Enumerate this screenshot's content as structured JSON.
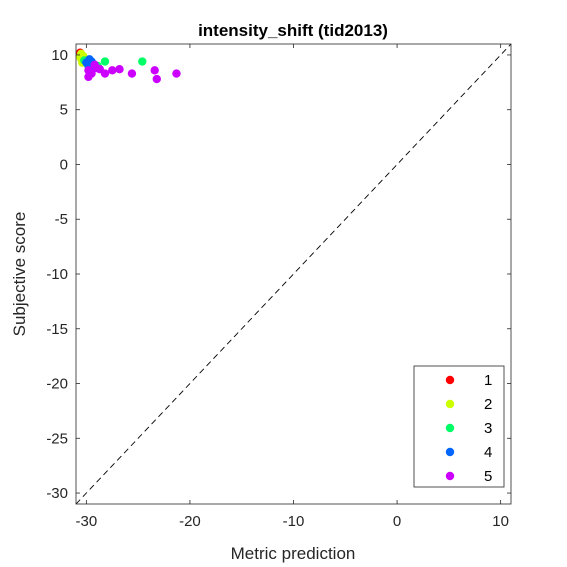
{
  "chart_data": {
    "type": "scatter",
    "title": "intensity_shift (tid2013)",
    "xlabel": "Metric prediction",
    "ylabel": "Subjective score",
    "xlim": [
      -31,
      11
    ],
    "ylim": [
      -31,
      11
    ],
    "xticks": [
      -30,
      -20,
      -10,
      0,
      10
    ],
    "yticks": [
      10,
      5,
      0,
      -5,
      -10,
      -15,
      -20,
      -25,
      -30
    ],
    "grid": false,
    "reference_line": "y = x (dashed)",
    "legend_position": "bottom-right",
    "series": [
      {
        "name": "1",
        "color": "#ff0000",
        "points": [
          [
            -30.6,
            10.2
          ],
          [
            -30.5,
            10.0
          ],
          [
            -30.4,
            9.9
          ],
          [
            -30.5,
            9.7
          ],
          [
            -30.3,
            9.6
          ]
        ]
      },
      {
        "name": "2",
        "color": "#ccff00",
        "points": [
          [
            -30.5,
            10.1
          ],
          [
            -30.3,
            9.9
          ],
          [
            -30.6,
            9.8
          ],
          [
            -30.2,
            9.5
          ],
          [
            -30.4,
            9.3
          ]
        ]
      },
      {
        "name": "3",
        "color": "#00ff66",
        "points": [
          [
            -30.2,
            9.5
          ],
          [
            -29.8,
            9.4
          ],
          [
            -29.5,
            9.2
          ],
          [
            -28.9,
            9.0
          ],
          [
            -28.2,
            9.4
          ],
          [
            -24.6,
            9.4
          ]
        ]
      },
      {
        "name": "4",
        "color": "#0066ff",
        "points": [
          [
            -30.0,
            9.3
          ],
          [
            -29.7,
            9.6
          ],
          [
            -29.5,
            9.4
          ],
          [
            -29.2,
            9.1
          ],
          [
            -29.6,
            8.9
          ],
          [
            -29.8,
            9.0
          ]
        ]
      },
      {
        "name": "5",
        "color": "#cc00ff",
        "points": [
          [
            -29.8,
            8.6
          ],
          [
            -29.5,
            8.3
          ],
          [
            -29.2,
            9.1
          ],
          [
            -28.7,
            8.7
          ],
          [
            -28.2,
            8.3
          ],
          [
            -27.5,
            8.6
          ],
          [
            -26.8,
            8.7
          ],
          [
            -25.6,
            8.3
          ],
          [
            -23.4,
            8.6
          ],
          [
            -23.2,
            7.8
          ],
          [
            -21.3,
            8.3
          ],
          [
            -29.8,
            8.0
          ],
          [
            -29.0,
            8.8
          ]
        ]
      }
    ]
  }
}
